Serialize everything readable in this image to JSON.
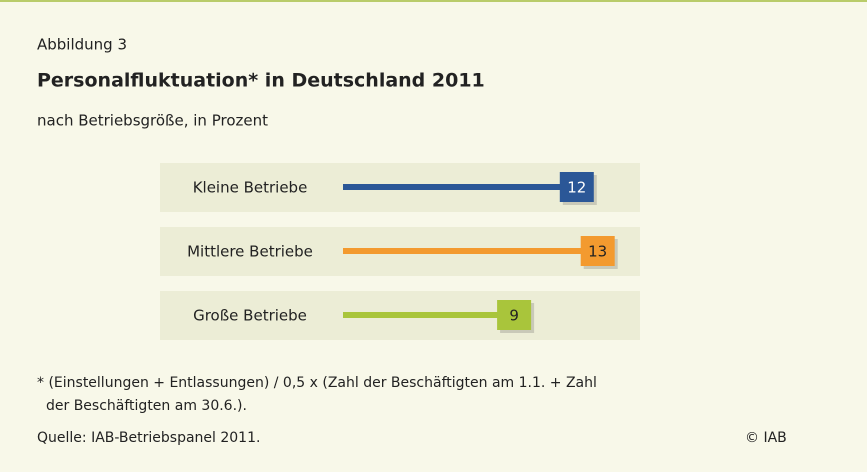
{
  "chart_data": {
    "type": "bar",
    "figure_label": "Abbildung 3",
    "title": "Personalfluktuation* in Deutschland 2011",
    "subtitle": "nach Betriebsgröße, in Prozent",
    "categories": [
      "Kleine Betriebe",
      "Mittlere Betriebe",
      "Große Betriebe"
    ],
    "values": [
      12,
      13,
      9
    ],
    "colors": [
      "#2b5797",
      "#f39a2f",
      "#a9c53b"
    ],
    "note": [
      "* (Einstellungen + Entlassungen) / 0,5 x (Zahl der Beschäftigten am 1.1. + Zahl",
      "der Beschäftigten am 30.6.)."
    ],
    "source": "Quelle: IAB-Betriebspanel 2011.",
    "copyright": "© IAB"
  }
}
